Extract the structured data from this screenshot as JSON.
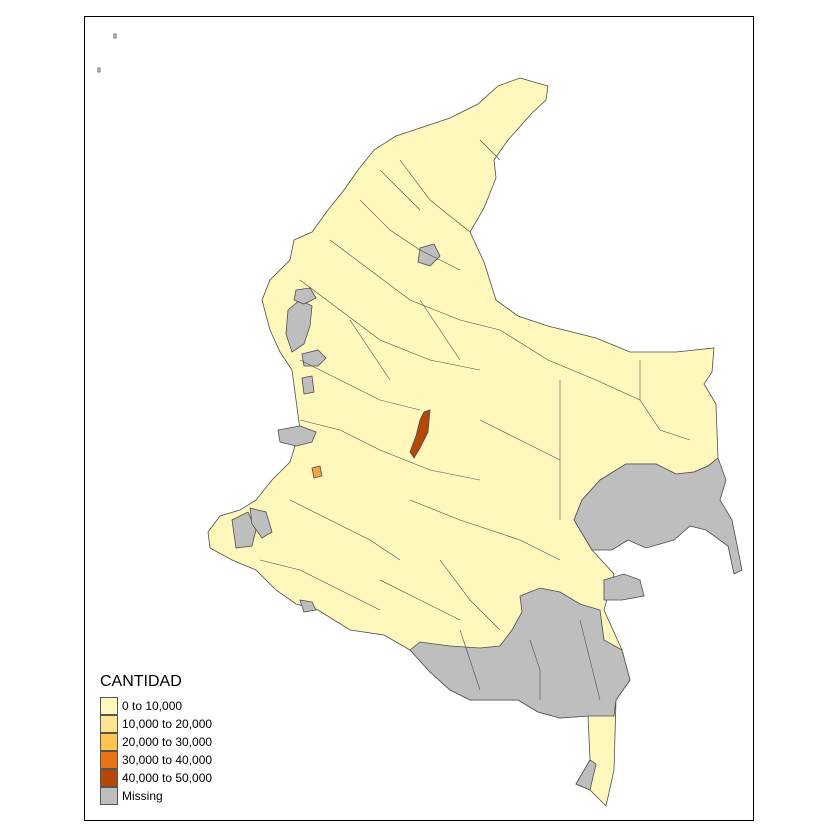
{
  "legend": {
    "title": "CANTIDAD",
    "classes": [
      {
        "label": "0 to 10,000",
        "color": "#FFF7BC"
      },
      {
        "label": "10,000 to 20,000",
        "color": "#FEE391"
      },
      {
        "label": "20,000 to 30,000",
        "color": "#FEC44F"
      },
      {
        "label": "30,000 to 40,000",
        "color": "#EC7014"
      },
      {
        "label": "40,000 to 50,000",
        "color": "#B54707"
      },
      {
        "label": "Missing",
        "color": "#BEBEBE"
      }
    ]
  },
  "colors": {
    "base": "#FFF7BC",
    "missing": "#BEBEBE",
    "border": "#4d4d4d",
    "high": "#B54707",
    "mid": "#F4A340"
  }
}
